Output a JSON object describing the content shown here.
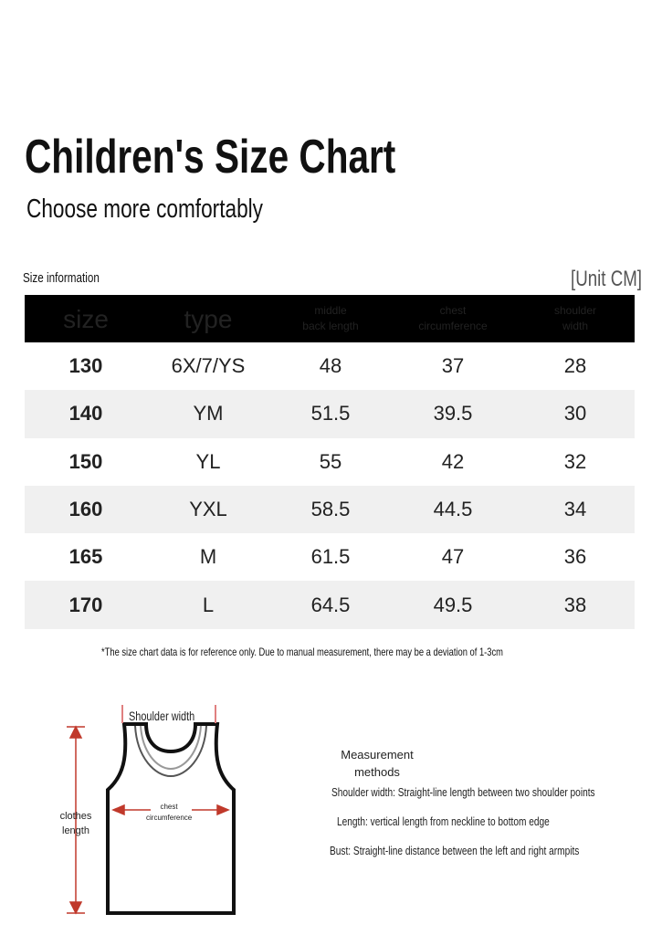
{
  "header": {
    "title": "Children's Size Chart",
    "subtitle": "Choose more comfortably"
  },
  "table": {
    "caption": "Size information",
    "unit": "[Unit CM]",
    "columns": [
      "size",
      "type",
      "middle back length",
      "chest circumference",
      "shoulder width"
    ],
    "rows": [
      [
        130,
        "6X/7/YS",
        48,
        37,
        28
      ],
      [
        140,
        "YM",
        51.5,
        39.5,
        30
      ],
      [
        150,
        "YL",
        55,
        42,
        32
      ],
      [
        160,
        "YXL",
        58.5,
        44.5,
        34
      ],
      [
        165,
        "M",
        61.5,
        47,
        36
      ],
      [
        170,
        "L",
        64.5,
        49.5,
        38
      ]
    ],
    "note": "*The size chart data is for reference only. Due to manual measurement, there may be a deviation of 1-3cm"
  },
  "diagram": {
    "shoulder_label": "Shoulder width",
    "chest_label": "chest circumference",
    "length_label": "clothes length"
  },
  "methods": {
    "title": "Measurement methods",
    "items": [
      "Shoulder width: Straight-line length between two shoulder points",
      "Length: vertical length from neckline to bottom edge",
      "Bust: Straight-line distance between the left and right armpits"
    ]
  }
}
